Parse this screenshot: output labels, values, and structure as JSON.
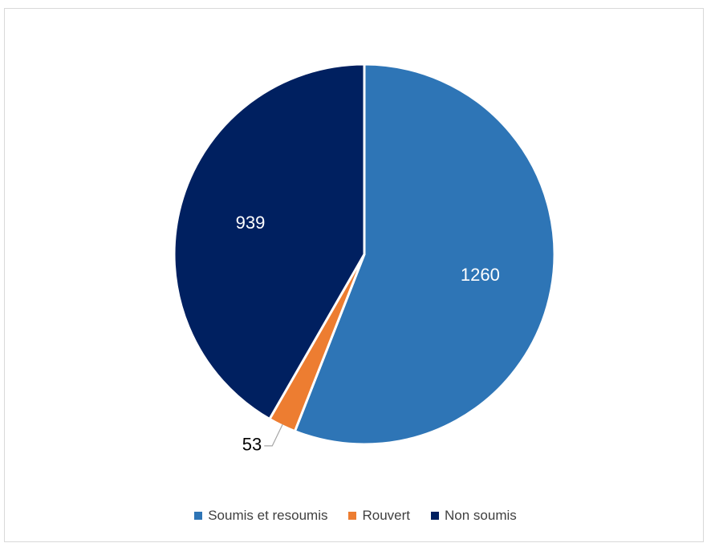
{
  "chart_data": {
    "type": "pie",
    "title": "",
    "categories": [
      "Soumis et resoumis",
      "Rouvert",
      "Non soumis"
    ],
    "values": [
      1260,
      53,
      939
    ],
    "data_labels": [
      "1260",
      "53",
      "939"
    ],
    "colors": [
      "#2E75B6",
      "#ED7D31",
      "#002060"
    ],
    "label_colors": [
      "#ffffff",
      "#000000",
      "#ffffff"
    ],
    "start_angle_deg": 0,
    "direction": "clockwise",
    "legend_placement": "bottom"
  }
}
